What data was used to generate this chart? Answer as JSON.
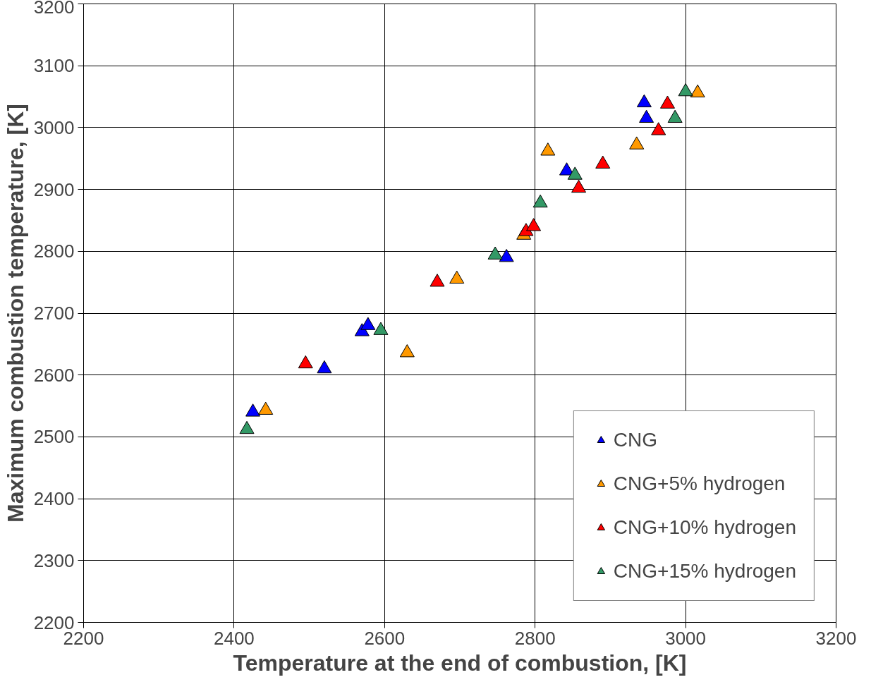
{
  "chart_data": {
    "type": "scatter",
    "xlabel": "Temperature at the end of combustion, [K]",
    "ylabel": "Maximum combustion temperature, [K]",
    "xlim": [
      2200,
      3200
    ],
    "ylim": [
      2200,
      3200
    ],
    "xticks": [
      2200,
      2400,
      2600,
      2800,
      3000,
      3200
    ],
    "yticks": [
      2200,
      2300,
      2400,
      2500,
      2600,
      2700,
      2800,
      2900,
      3000,
      3100,
      3200
    ],
    "grid": true,
    "legend": "bottom right",
    "marker": "triangle",
    "series": [
      {
        "name": "CNG",
        "color": "#0000ff",
        "x": [
          2425,
          2520,
          2570,
          2578,
          2762,
          2842,
          2945,
          2948
        ],
        "values": [
          2540,
          2610,
          2670,
          2680,
          2790,
          2930,
          3040,
          3015
        ]
      },
      {
        "name": "CNG+5% hydrogen",
        "color": "#ff9900",
        "x": [
          2442,
          2630,
          2696,
          2785,
          2817,
          2935,
          3016
        ],
        "values": [
          2543,
          2636,
          2755,
          2826,
          2962,
          2972,
          3056
        ]
      },
      {
        "name": "CNG+10% hydrogen",
        "color": "#ff0000",
        "x": [
          2495,
          2670,
          2788,
          2798,
          2858,
          2890,
          2964,
          2976
        ],
        "values": [
          2618,
          2750,
          2832,
          2840,
          2902,
          2941,
          2995,
          3038
        ]
      },
      {
        "name": "CNG+15% hydrogen",
        "color": "#339966",
        "x": [
          2417,
          2595,
          2747,
          2807,
          2853,
          2986,
          3000
        ],
        "values": [
          2512,
          2672,
          2794,
          2878,
          2923,
          3015,
          3058
        ]
      }
    ]
  }
}
